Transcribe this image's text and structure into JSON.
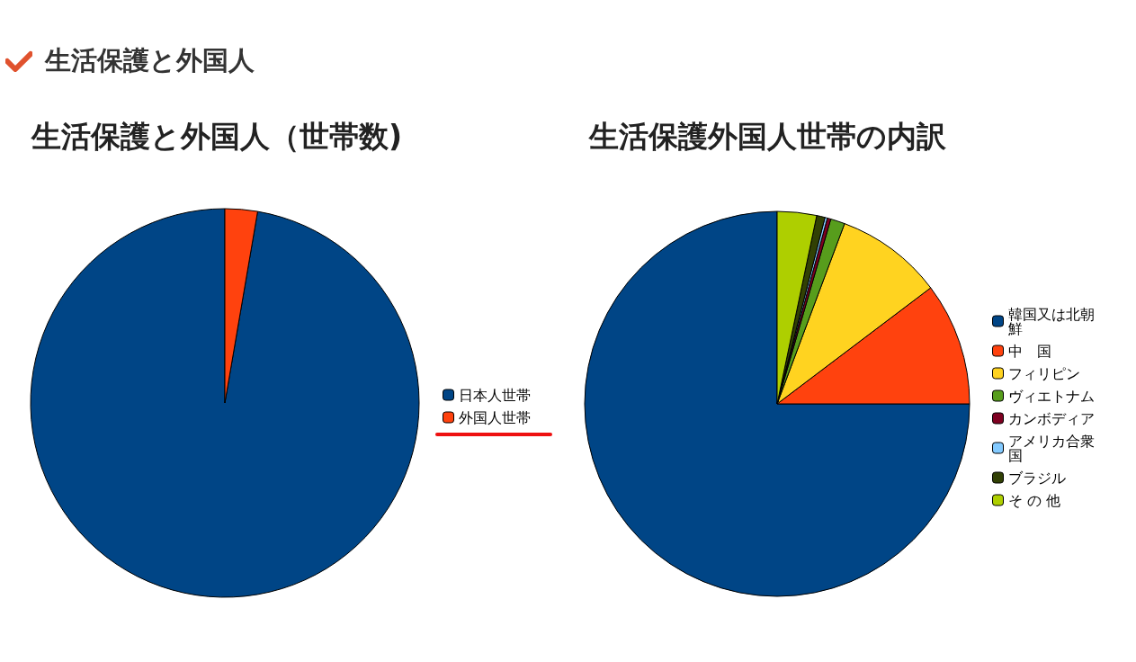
{
  "chart_data": [
    {
      "type": "pie",
      "title": "生活保護と外国人（世帯数)",
      "annotations": [
        "生活保護と外国人"
      ],
      "categories": [
        "日本人世帯",
        "外国人世帯"
      ],
      "values": [
        97.3,
        2.7
      ],
      "colors": [
        "#004586",
        "#ff420e"
      ],
      "legend": "right"
    },
    {
      "type": "pie",
      "title": "生活保護外国人世帯の内訳",
      "categories": [
        "韓国又は北朝鮮",
        "中　国",
        "フィリピン",
        "ヴィエトナム",
        "カンボディア",
        "アメリカ合衆国",
        "ブラジル",
        "そ の 他"
      ],
      "values": [
        75,
        10.3,
        9,
        1.2,
        0.3,
        0.2,
        0.7,
        3.3
      ],
      "colors": [
        "#004586",
        "#ff420e",
        "#ffd320",
        "#579d1c",
        "#7e0021",
        "#83caff",
        "#314004",
        "#aecf00"
      ],
      "legend": "right"
    }
  ]
}
